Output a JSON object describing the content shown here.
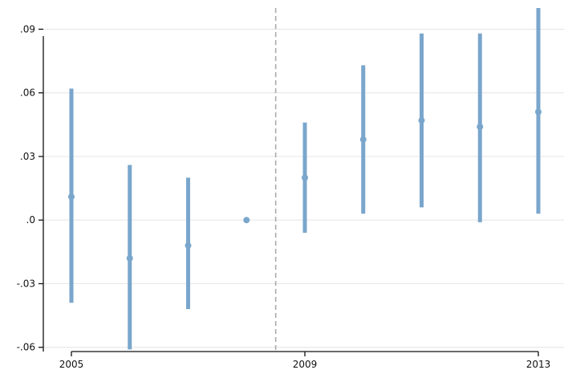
{
  "chart_data": {
    "type": "scatter",
    "title": "",
    "xlabel": "",
    "ylabel": "",
    "xlim": [
      2005,
      2013
    ],
    "ylim": [
      -0.062,
      0.1
    ],
    "x_ticks": [
      2005,
      2009,
      2013
    ],
    "x_tick_labels": [
      "2005",
      "2009",
      "2013"
    ],
    "y_ticks": [
      -0.06,
      -0.03,
      0.0,
      0.03,
      0.06,
      0.09
    ],
    "y_tick_labels": [
      "-.06",
      "-.03",
      ".0",
      ".03",
      ".06",
      ".09"
    ],
    "grid": "horizontal",
    "reference_line_x": 2008.5,
    "series": [
      {
        "x": [
          2005,
          2006,
          2007,
          2008,
          2009,
          2010,
          2011,
          2012,
          2013
        ],
        "values": [
          0.011,
          -0.018,
          -0.012,
          0.0,
          0.02,
          0.038,
          0.047,
          0.044,
          0.051
        ],
        "ci_low": [
          -0.039,
          -0.061,
          -0.042,
          0.0,
          -0.006,
          0.003,
          0.006,
          -0.001,
          0.003
        ],
        "ci_high": [
          0.062,
          0.026,
          0.02,
          0.0,
          0.046,
          0.073,
          0.088,
          0.088,
          0.1
        ]
      }
    ],
    "colors": {
      "point": "#7aa6cc",
      "grid": "#e8e8e8",
      "axis": "#111111",
      "reference_line": "#aaaaaa"
    }
  }
}
